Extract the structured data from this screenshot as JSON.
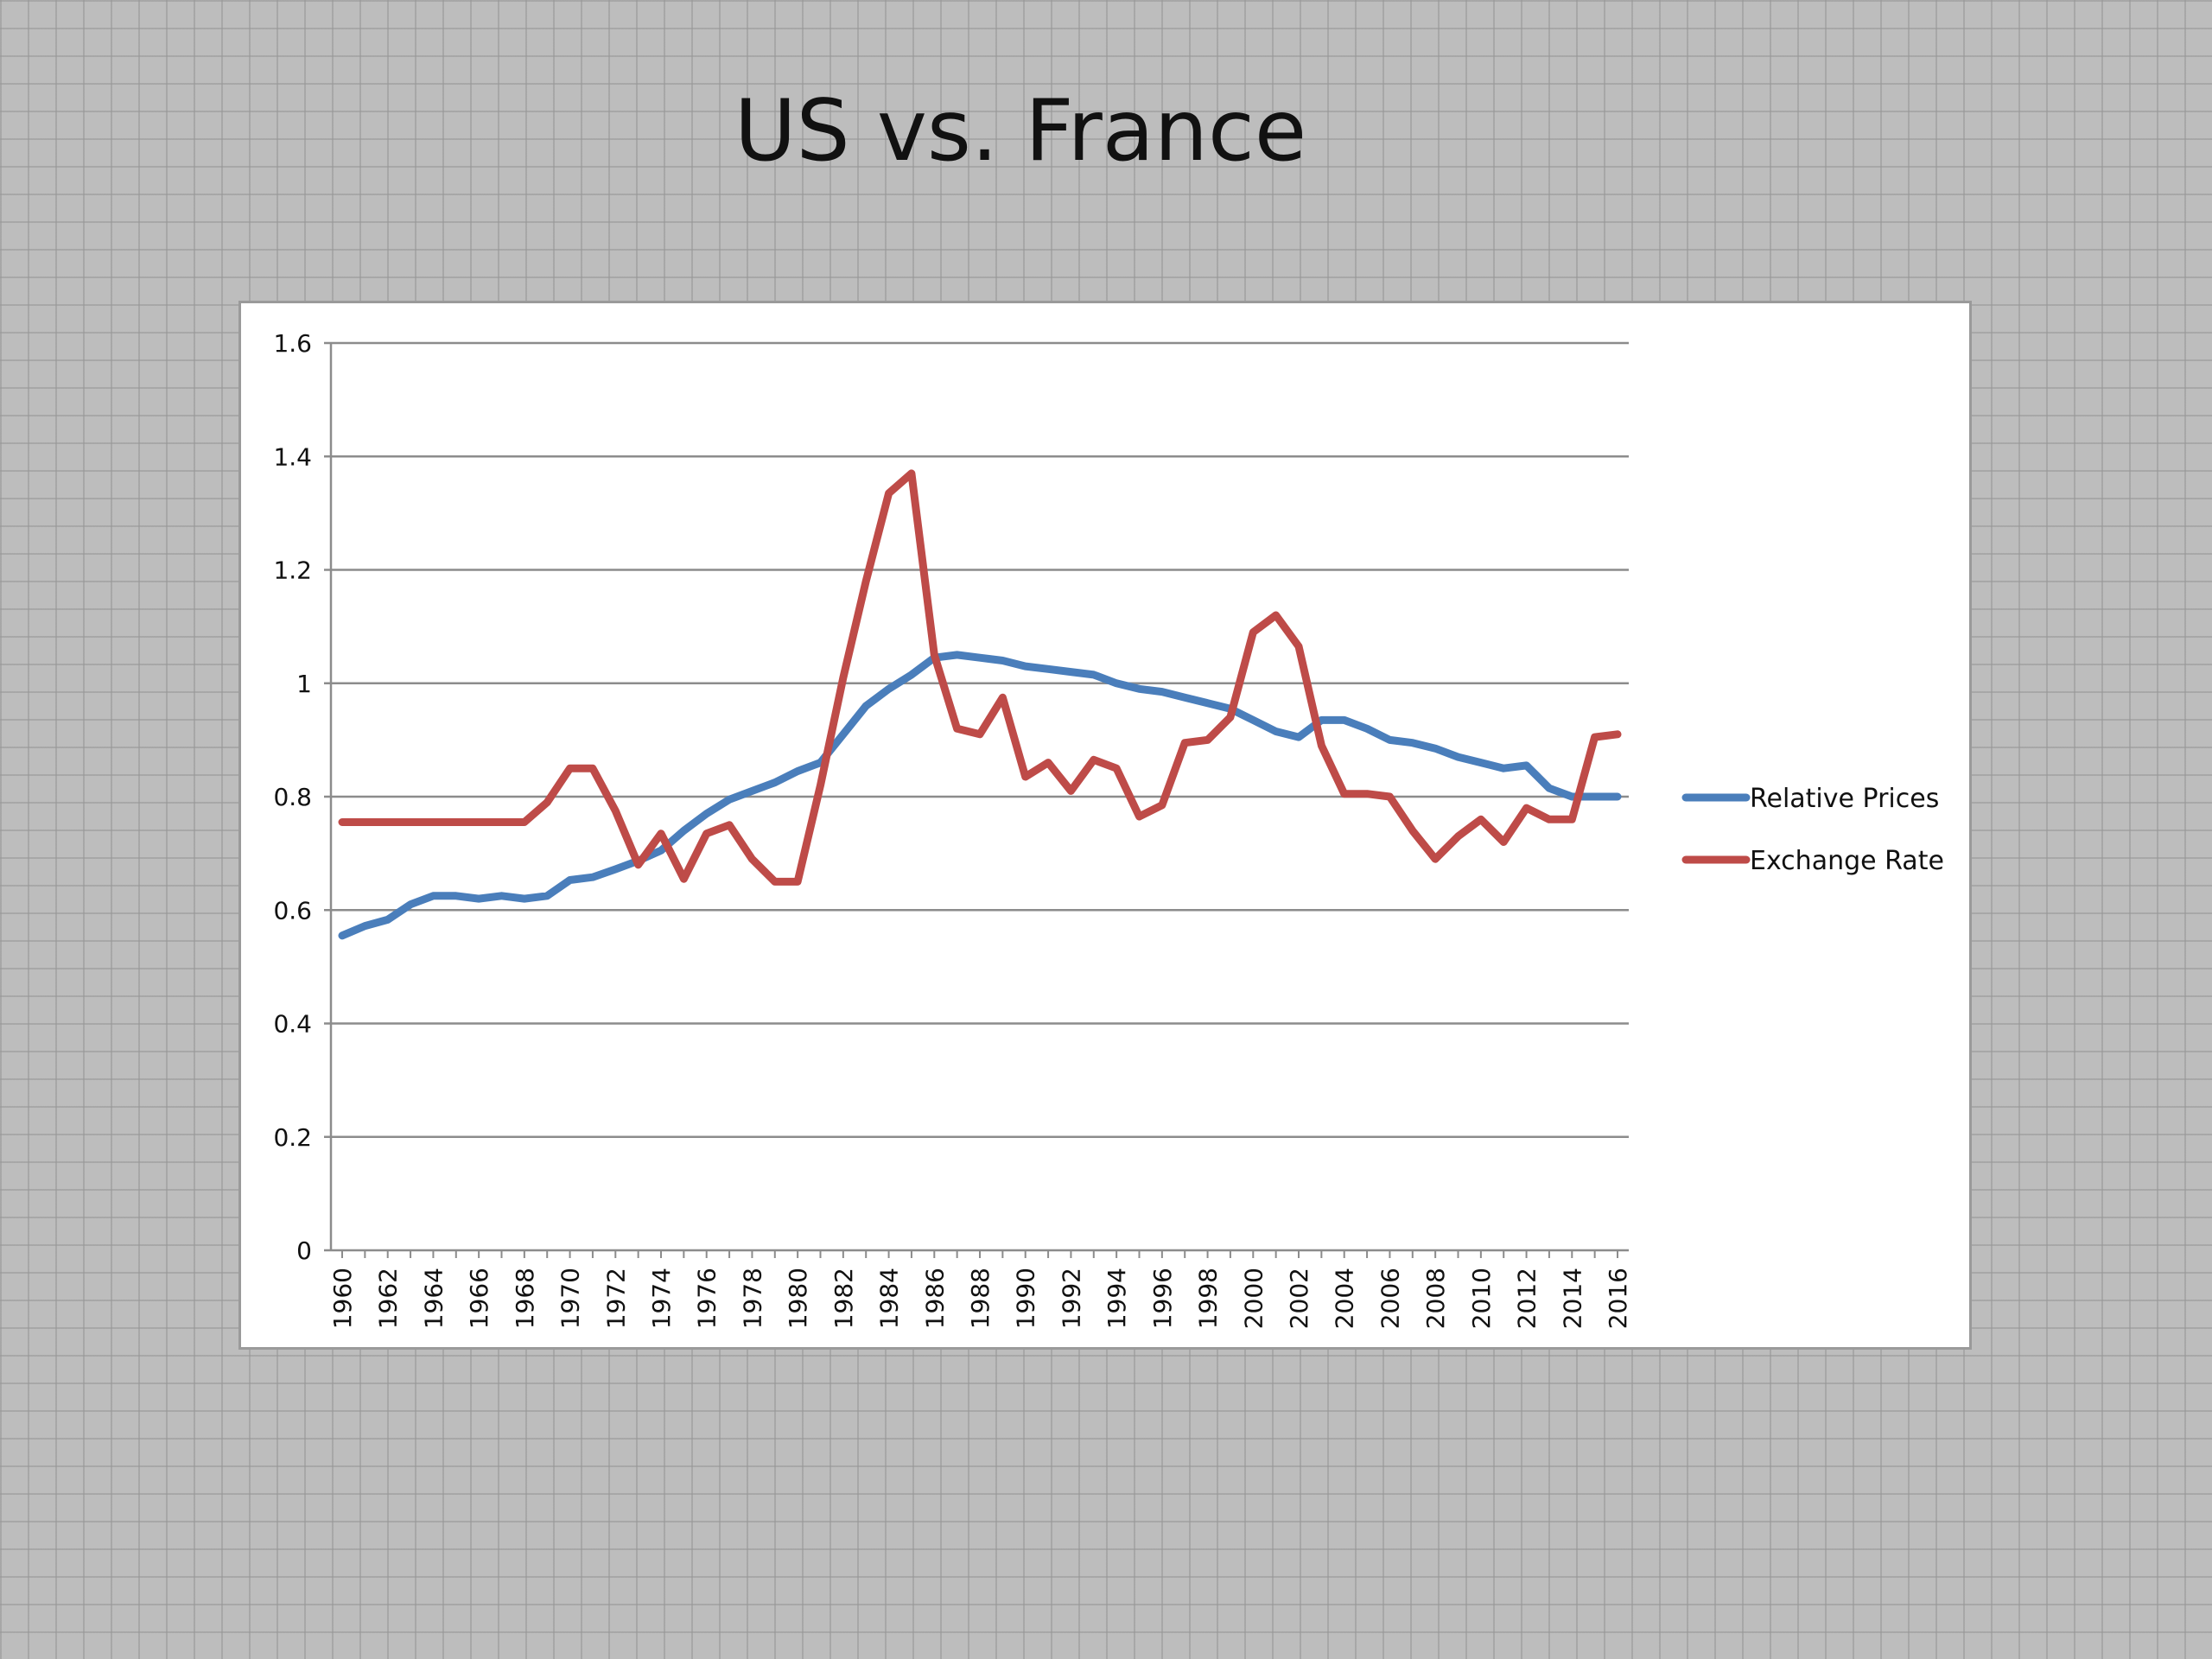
{
  "slide": {
    "title": "US vs. France"
  },
  "colors": {
    "relative_prices": "#4a7ebb",
    "exchange_rate": "#be4b48",
    "grid": "#8c8c8c"
  },
  "chart_data": {
    "type": "line",
    "title": "",
    "xlabel": "",
    "ylabel": "",
    "ylim": [
      0,
      1.6
    ],
    "yticks": [
      "0",
      "0.2",
      "0.4",
      "0.6",
      "0.8",
      "1",
      "1.2",
      "1.4",
      "1.6"
    ],
    "xticks": [
      "1960",
      "1962",
      "1964",
      "1966",
      "1968",
      "1970",
      "1972",
      "1974",
      "1976",
      "1978",
      "1980",
      "1982",
      "1984",
      "1986",
      "1988",
      "1990",
      "1992",
      "1994",
      "1996",
      "1998",
      "2000",
      "2002",
      "2004",
      "2006",
      "2008",
      "2010",
      "2012",
      "2014",
      "2016"
    ],
    "grid": "horizontal",
    "legend": "right",
    "x": [
      1960,
      1961,
      1962,
      1963,
      1964,
      1965,
      1966,
      1967,
      1968,
      1969,
      1970,
      1971,
      1972,
      1973,
      1974,
      1975,
      1976,
      1977,
      1978,
      1979,
      1980,
      1981,
      1982,
      1983,
      1984,
      1985,
      1986,
      1987,
      1988,
      1989,
      1990,
      1991,
      1992,
      1993,
      1994,
      1995,
      1996,
      1997,
      1998,
      1999,
      2000,
      2001,
      2002,
      2003,
      2004,
      2005,
      2006,
      2007,
      2008,
      2009,
      2010,
      2011,
      2012,
      2013,
      2014,
      2015,
      2016
    ],
    "series": [
      {
        "name": "Relative Prices",
        "values": [
          0.555,
          0.572,
          0.583,
          0.61,
          0.625,
          0.625,
          0.62,
          0.625,
          0.62,
          0.625,
          0.653,
          0.658,
          0.672,
          0.687,
          0.705,
          0.74,
          0.77,
          0.795,
          0.81,
          0.825,
          0.845,
          0.86,
          0.91,
          0.96,
          0.99,
          1.015,
          1.045,
          1.05,
          1.045,
          1.04,
          1.03,
          1.025,
          1.02,
          1.015,
          1.0,
          0.99,
          0.985,
          0.975,
          0.965,
          0.955,
          0.935,
          0.915,
          0.905,
          0.935,
          0.935,
          0.92,
          0.9,
          0.895,
          0.885,
          0.87,
          0.86,
          0.85,
          0.855,
          0.815,
          0.8,
          0.8,
          0.8
        ]
      },
      {
        "name": "Exchange Rate",
        "values": [
          0.755,
          0.755,
          0.755,
          0.755,
          0.755,
          0.755,
          0.755,
          0.755,
          0.755,
          0.79,
          0.85,
          0.85,
          0.775,
          0.68,
          0.735,
          0.655,
          0.735,
          0.75,
          0.69,
          0.65,
          0.65,
          0.82,
          1.01,
          1.18,
          1.335,
          1.37,
          1.05,
          0.92,
          0.91,
          0.975,
          0.835,
          0.86,
          0.81,
          0.865,
          0.85,
          0.765,
          0.785,
          0.895,
          0.9,
          0.94,
          1.09,
          1.12,
          1.065,
          0.89,
          0.805,
          0.805,
          0.8,
          0.74,
          0.69,
          0.73,
          0.76,
          0.72,
          0.78,
          0.76,
          0.76,
          0.905,
          0.91
        ]
      }
    ]
  }
}
